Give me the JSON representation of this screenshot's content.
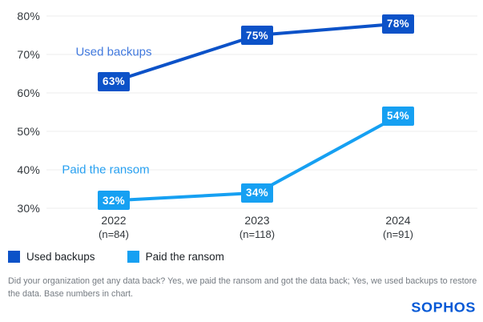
{
  "chart_data": {
    "type": "line",
    "title": "",
    "unit": "%",
    "categories": [
      "2022",
      "2023",
      "2024"
    ],
    "category_sublabels": [
      "(n=84)",
      "(n=118)",
      "(n=91)"
    ],
    "series": [
      {
        "name": "Used backups",
        "annotation": "Used backups",
        "annotation_color": "#4179de",
        "color": "#0c52c8",
        "values": [
          63,
          75,
          78
        ]
      },
      {
        "name": "Paid the ransom",
        "annotation": "Paid the ransom",
        "annotation_color": "#27a0f1",
        "color": "#16a0f2",
        "values": [
          32,
          34,
          54
        ]
      }
    ],
    "yticks": [
      80,
      70,
      60,
      50,
      40,
      30
    ],
    "ylim": [
      30,
      80
    ],
    "grid": true,
    "legend_position": "bottom-left",
    "data_labels": true
  },
  "footer": {
    "text": "Did your organization get any data back? Yes, we paid the ransom and got the data back; Yes, we used backups to restore the data. Base numbers in chart."
  },
  "branding": {
    "logo_text": "SOPHOS"
  }
}
